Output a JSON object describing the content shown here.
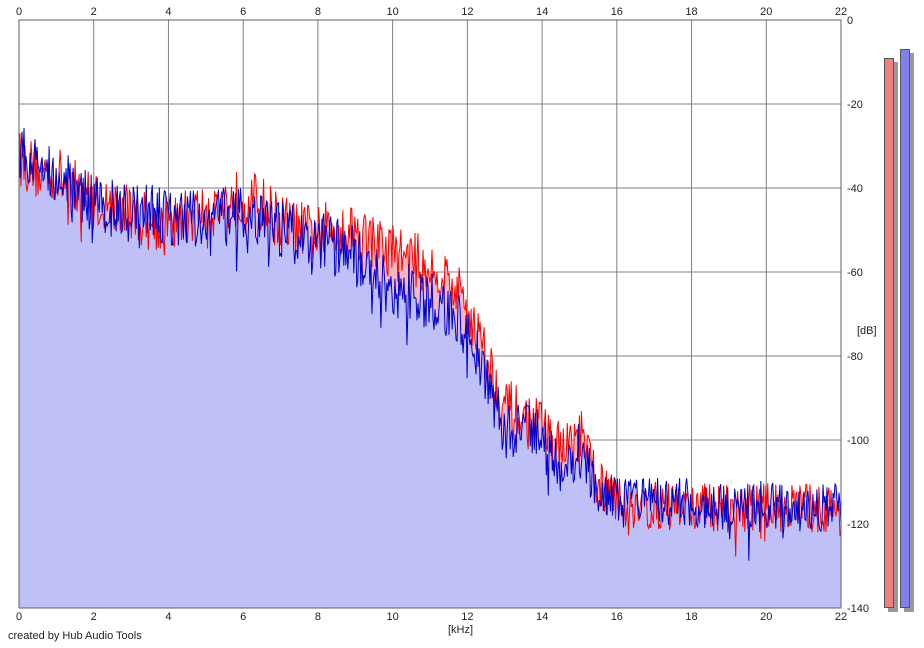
{
  "credit": "created by Hub Audio Tools",
  "colors": {
    "left_channel": "#ff0000",
    "right_channel": "#0000cc",
    "fill_right": "#c0c0f8",
    "fill_left_excess": "#f6b8c0",
    "grid": "#808080",
    "meter_left": "#f08080",
    "meter_right": "#8080f0"
  },
  "chart_data": {
    "type": "area",
    "xlabel": "[kHz]",
    "ylabel": "[dB]",
    "xlim": [
      0,
      22
    ],
    "ylim": [
      -140,
      0
    ],
    "x_ticks": [
      "0",
      "2",
      "4",
      "6",
      "8",
      "10",
      "12",
      "14",
      "16",
      "18",
      "20",
      "22"
    ],
    "y_ticks": [
      "0",
      "-20",
      "-40",
      "-60",
      "-80",
      "-100",
      "-120",
      "-140"
    ],
    "grid": true,
    "series": [
      {
        "channel": "left",
        "color": "#ff0000",
        "envelope": [
          [
            0.0,
            -33
          ],
          [
            0.5,
            -36
          ],
          [
            1.0,
            -37
          ],
          [
            1.5,
            -40
          ],
          [
            2.0,
            -43
          ],
          [
            2.5,
            -45
          ],
          [
            3.0,
            -46
          ],
          [
            3.5,
            -48
          ],
          [
            4.0,
            -49
          ],
          [
            4.5,
            -47
          ],
          [
            5.0,
            -45
          ],
          [
            5.5,
            -44
          ],
          [
            6.0,
            -42
          ],
          [
            6.5,
            -44
          ],
          [
            7.0,
            -48
          ],
          [
            7.5,
            -50
          ],
          [
            8.0,
            -51
          ],
          [
            8.5,
            -49
          ],
          [
            9.0,
            -50
          ],
          [
            9.5,
            -53
          ],
          [
            10.0,
            -55
          ],
          [
            10.5,
            -57
          ],
          [
            11.0,
            -59
          ],
          [
            11.5,
            -62
          ],
          [
            12.0,
            -68
          ],
          [
            12.5,
            -80
          ],
          [
            13.0,
            -92
          ],
          [
            13.5,
            -95
          ],
          [
            14.0,
            -97
          ],
          [
            14.5,
            -103
          ],
          [
            15.0,
            -99
          ],
          [
            15.5,
            -110
          ],
          [
            16.0,
            -115
          ],
          [
            17.0,
            -116
          ],
          [
            18.0,
            -116
          ],
          [
            19.0,
            -116
          ],
          [
            20.0,
            -116
          ],
          [
            21.0,
            -116
          ],
          [
            22.0,
            -117
          ]
        ]
      },
      {
        "channel": "right",
        "color": "#0000cc",
        "envelope": [
          [
            0.0,
            -31
          ],
          [
            0.5,
            -35
          ],
          [
            1.0,
            -36
          ],
          [
            1.5,
            -40
          ],
          [
            2.0,
            -44
          ],
          [
            2.5,
            -45
          ],
          [
            3.0,
            -46
          ],
          [
            3.5,
            -46
          ],
          [
            4.0,
            -47
          ],
          [
            4.5,
            -48
          ],
          [
            5.0,
            -46
          ],
          [
            5.5,
            -47
          ],
          [
            6.0,
            -47
          ],
          [
            6.5,
            -49
          ],
          [
            7.0,
            -50
          ],
          [
            7.5,
            -51
          ],
          [
            8.0,
            -52
          ],
          [
            8.5,
            -54
          ],
          [
            9.0,
            -56
          ],
          [
            9.5,
            -60
          ],
          [
            10.0,
            -64
          ],
          [
            10.5,
            -65
          ],
          [
            11.0,
            -67
          ],
          [
            11.5,
            -68
          ],
          [
            12.0,
            -74
          ],
          [
            12.5,
            -86
          ],
          [
            13.0,
            -98
          ],
          [
            13.5,
            -98
          ],
          [
            14.0,
            -100
          ],
          [
            14.5,
            -107
          ],
          [
            15.0,
            -103
          ],
          [
            15.5,
            -114
          ],
          [
            16.0,
            -115
          ],
          [
            17.0,
            -115
          ],
          [
            18.0,
            -115
          ],
          [
            19.0,
            -116
          ],
          [
            20.0,
            -115
          ],
          [
            21.0,
            -116
          ],
          [
            22.0,
            -116
          ]
        ]
      }
    ],
    "level_meters": {
      "left_db": -9,
      "right_db": -7
    }
  }
}
